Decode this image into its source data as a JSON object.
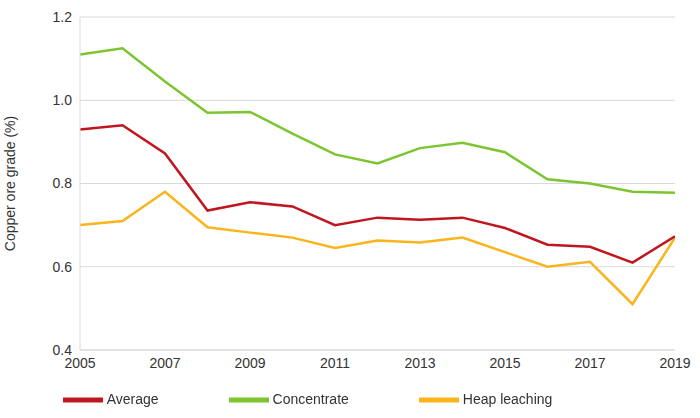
{
  "chart_data": {
    "type": "line",
    "y_label": "Copper ore grade (%)",
    "x": [
      2005,
      2006,
      2007,
      2008,
      2009,
      2010,
      2011,
      2012,
      2013,
      2014,
      2015,
      2016,
      2017,
      2018,
      2019
    ],
    "series": [
      {
        "name": "Concentrate",
        "color": "#7cc531",
        "values": [
          1.11,
          1.125,
          1.045,
          0.97,
          0.972,
          0.92,
          0.87,
          0.848,
          0.885,
          0.898,
          0.875,
          0.81,
          0.8,
          0.78,
          0.778
        ]
      },
      {
        "name": "Heap leaching",
        "color": "#fbb41c",
        "values": [
          0.7,
          0.71,
          0.78,
          0.695,
          0.682,
          0.67,
          0.645,
          0.663,
          0.658,
          0.67,
          0.635,
          0.6,
          0.612,
          0.51,
          0.67
        ]
      },
      {
        "name": "Average",
        "color": "#c0161f",
        "values": [
          0.93,
          0.94,
          0.872,
          0.735,
          0.755,
          0.745,
          0.7,
          0.718,
          0.713,
          0.718,
          0.693,
          0.653,
          0.648,
          0.61,
          0.673
        ]
      }
    ],
    "xlim": [
      2005,
      2019
    ],
    "xticks": [
      2005,
      2007,
      2009,
      2011,
      2013,
      2015,
      2017,
      2019
    ],
    "ylim": [
      0.4,
      1.2
    ],
    "yticks": [
      0.4,
      0.6,
      0.8,
      {
        "value": 1,
        "label": "1.0"
      },
      1.2
    ],
    "grid": true,
    "legend": "bottom"
  }
}
